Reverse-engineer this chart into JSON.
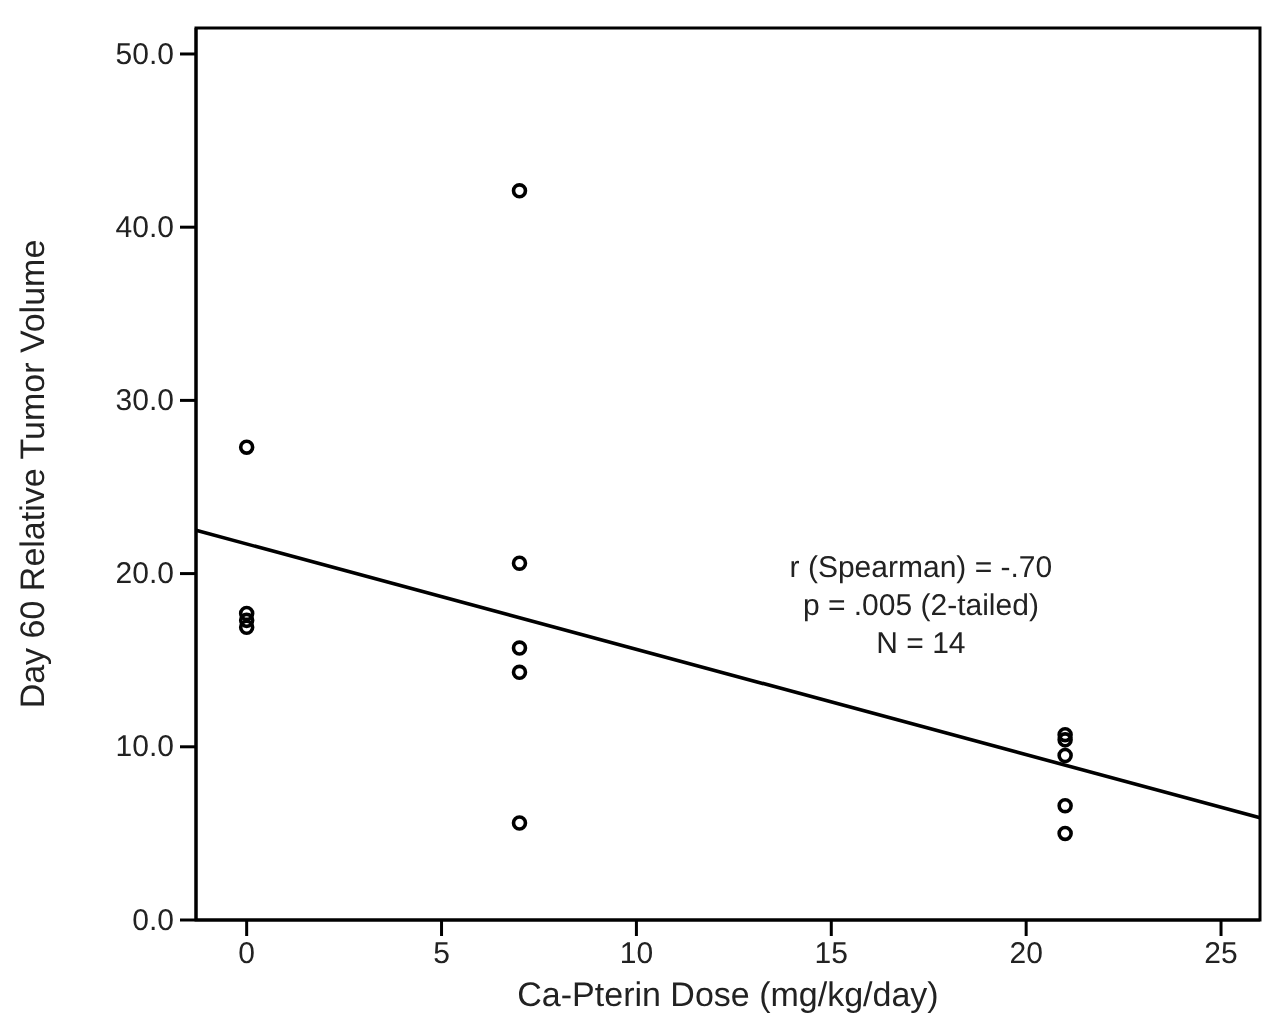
{
  "chart_data": {
    "type": "scatter",
    "xlabel": "Ca-Pterin Dose (mg/kg/day)",
    "ylabel": "Day 60 Relative Tumor Volume",
    "xlim": [
      -1.3,
      26
    ],
    "xticks": [
      0,
      5,
      10,
      15,
      20,
      25
    ],
    "ylim": [
      0,
      51.5
    ],
    "yticks": [
      {
        "value": 0,
        "label": "0.0"
      },
      {
        "value": 10,
        "label": "10.0"
      },
      {
        "value": 20,
        "label": "20.0"
      },
      {
        "value": 30,
        "label": "30.0"
      },
      {
        "value": 40,
        "label": "40.0"
      },
      {
        "value": 50,
        "label": "50.0"
      }
    ],
    "grid": false,
    "series": [
      {
        "marker": "circle",
        "color": "#000000",
        "x": [
          0,
          0,
          0,
          0,
          7,
          7,
          7,
          7,
          7,
          21,
          21,
          21,
          21,
          21
        ],
        "values": [
          27.3,
          17.7,
          17.3,
          16.9,
          42.1,
          20.6,
          15.7,
          14.3,
          5.6,
          10.7,
          10.4,
          9.5,
          6.6,
          5.0
        ]
      },
      {
        "type": "line",
        "color": "#000000",
        "x": [
          -1.3,
          26
        ],
        "values": [
          22.5,
          5.9
        ]
      }
    ],
    "annotations": [
      "r (Spearman) = -.70",
      "p = .005 (2-tailed)",
      "N = 14"
    ]
  }
}
